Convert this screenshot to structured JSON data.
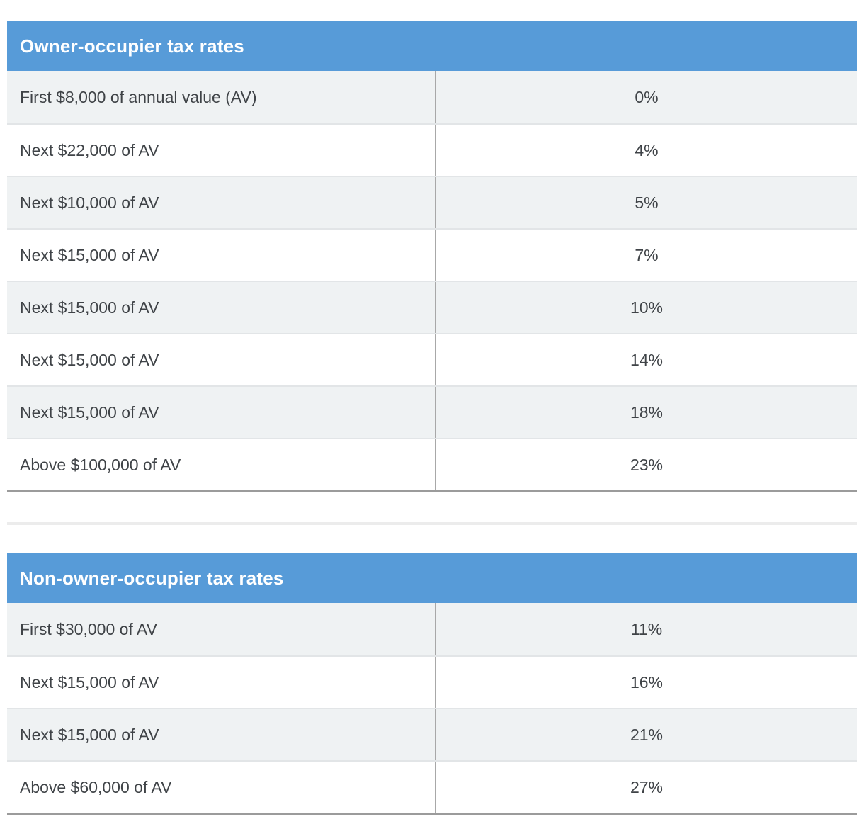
{
  "colors": {
    "header-bg": "#579bd8",
    "header-text": "#ffffff",
    "row-bg": "#ffffff",
    "row-alt-bg": "#eff2f3",
    "row-border": "#e2e5e7",
    "column-divider": "#a8a8a8",
    "table-bottom-border": "#9b9b9b",
    "separator": "#ececec",
    "body-text": "#3f4347"
  },
  "tables": [
    {
      "title": "Owner-occupier tax rates",
      "rows": [
        {
          "label": "First $8,000 of annual value (AV)",
          "rate": "0%"
        },
        {
          "label": "Next $22,000 of AV",
          "rate": "4%"
        },
        {
          "label": "Next $10,000 of AV",
          "rate": "5%"
        },
        {
          "label": "Next $15,000 of AV",
          "rate": "7%"
        },
        {
          "label": "Next $15,000 of AV",
          "rate": "10%"
        },
        {
          "label": "Next $15,000 of AV",
          "rate": "14%"
        },
        {
          "label": "Next $15,000 of AV",
          "rate": "18%"
        },
        {
          "label": "Above $100,000 of AV",
          "rate": "23%"
        }
      ]
    },
    {
      "title": "Non-owner-occupier tax rates",
      "rows": [
        {
          "label": "First $30,000 of AV",
          "rate": "11%"
        },
        {
          "label": "Next $15,000 of AV",
          "rate": "16%"
        },
        {
          "label": "Next $15,000 of AV",
          "rate": "21%"
        },
        {
          "label": "Above $60,000 of AV",
          "rate": "27%"
        }
      ]
    }
  ]
}
